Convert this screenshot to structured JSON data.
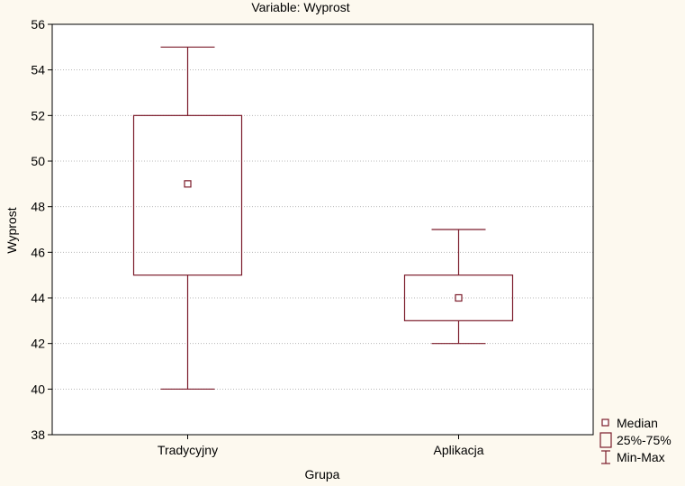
{
  "chart_data": {
    "type": "boxplot",
    "title": "Variable: Wyprost",
    "xlabel": "Grupa",
    "ylabel": "Wyprost",
    "ylim": [
      38,
      56
    ],
    "yticks": [
      38,
      40,
      42,
      44,
      46,
      48,
      50,
      52,
      54,
      56
    ],
    "grid": "horizontal dotted",
    "categories": [
      "Tradycyjny",
      "Aplikacja"
    ],
    "boxes": [
      {
        "category": "Tradycyjny",
        "min": 40,
        "q1": 45,
        "median": 49,
        "q3": 52,
        "max": 55
      },
      {
        "category": "Aplikacja",
        "min": 42,
        "q1": 43,
        "median": 44,
        "q3": 45,
        "max": 47
      }
    ],
    "legend": {
      "placement": "bottom-right outside",
      "entries": [
        {
          "symbol": "median-marker",
          "label": "Median"
        },
        {
          "symbol": "box",
          "label": "25%-75%"
        },
        {
          "symbol": "whisker",
          "label": "Min-Max"
        }
      ]
    },
    "colors": {
      "box": "#7b1b2a",
      "grid": "#b8b8b8",
      "background": "#fdf9ef",
      "plot_bg": "#ffffff"
    }
  }
}
